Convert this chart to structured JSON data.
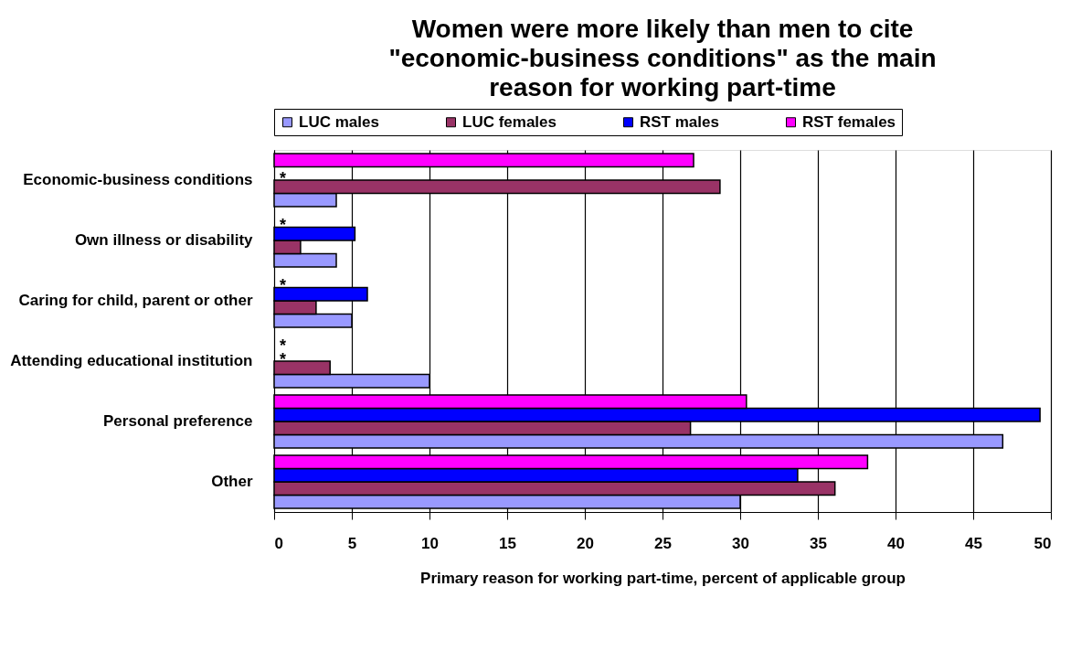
{
  "chart_data": {
    "type": "bar",
    "orientation": "horizontal",
    "title": [
      "Women were more likely than men to cite",
      "\"economic-business conditions\" as the main",
      "reason for working part-time"
    ],
    "xlabel": "Primary reason for working part-time, percent of applicable group",
    "categories": [
      "Economic-business conditions",
      "Own illness or disability",
      "Caring for child, parent or other",
      "Attending educational institution",
      "Personal preference",
      "Other"
    ],
    "series": [
      {
        "name": "LUC males",
        "color": "#9999ff",
        "values": [
          4.0,
          4.0,
          5.0,
          10.0,
          46.9,
          30.0
        ]
      },
      {
        "name": "LUC females",
        "color": "#993366",
        "values": [
          28.7,
          1.7,
          2.7,
          3.6,
          26.8,
          36.1
        ]
      },
      {
        "name": "RST males",
        "color": "#0000ff",
        "values": [
          null,
          5.2,
          6.0,
          null,
          49.3,
          33.7
        ]
      },
      {
        "name": "RST females",
        "color": "#ff00ff",
        "values": [
          27.0,
          null,
          null,
          null,
          30.4,
          38.2
        ]
      }
    ],
    "annotations": [
      {
        "text": "*",
        "y": "Economic-business conditions"
      },
      {
        "text": "*",
        "y": "Own illness or disability"
      },
      {
        "text": "*",
        "y": "Caring for child, parent or other"
      },
      {
        "text": "*",
        "y": "Attending educational institution"
      },
      {
        "text": "*",
        "y": "Attending educational institution"
      }
    ],
    "xlim": [
      0,
      50
    ],
    "xticks": [
      0,
      5,
      10,
      15,
      20,
      25,
      30,
      35,
      40,
      45,
      50
    ],
    "grid": "x",
    "legend": "top"
  }
}
